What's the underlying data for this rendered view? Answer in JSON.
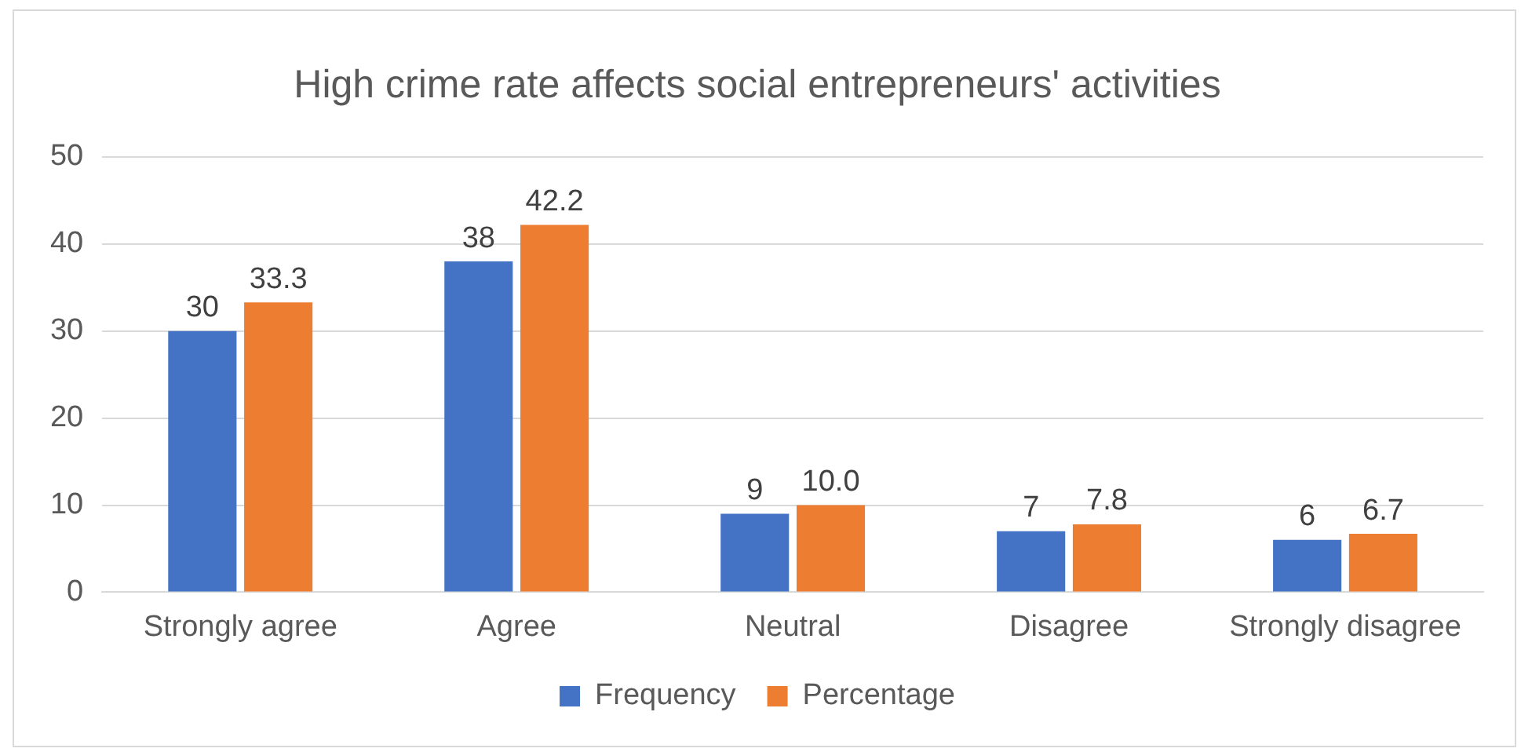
{
  "chart_data": {
    "type": "bar",
    "title": "High crime rate affects social entrepreneurs' activities",
    "categories": [
      "Strongly agree",
      "Agree",
      "Neutral",
      "Disagree",
      "Strongly disagree"
    ],
    "series": [
      {
        "name": "Frequency",
        "color": "#4472c4",
        "values": [
          30,
          38,
          9,
          7,
          6
        ],
        "value_labels": [
          "30",
          "38",
          "9",
          "7",
          "6"
        ]
      },
      {
        "name": "Percentage",
        "color": "#ed7d31",
        "values": [
          33.3,
          42.2,
          10.0,
          7.8,
          6.7
        ],
        "value_labels": [
          "33.3",
          "42.2",
          "10.0",
          "7.8",
          "6.7"
        ]
      }
    ],
    "ylim": [
      0,
      50
    ],
    "yticks": [
      0,
      10,
      20,
      30,
      40,
      50
    ],
    "grid": "y",
    "legend": "bottom"
  }
}
